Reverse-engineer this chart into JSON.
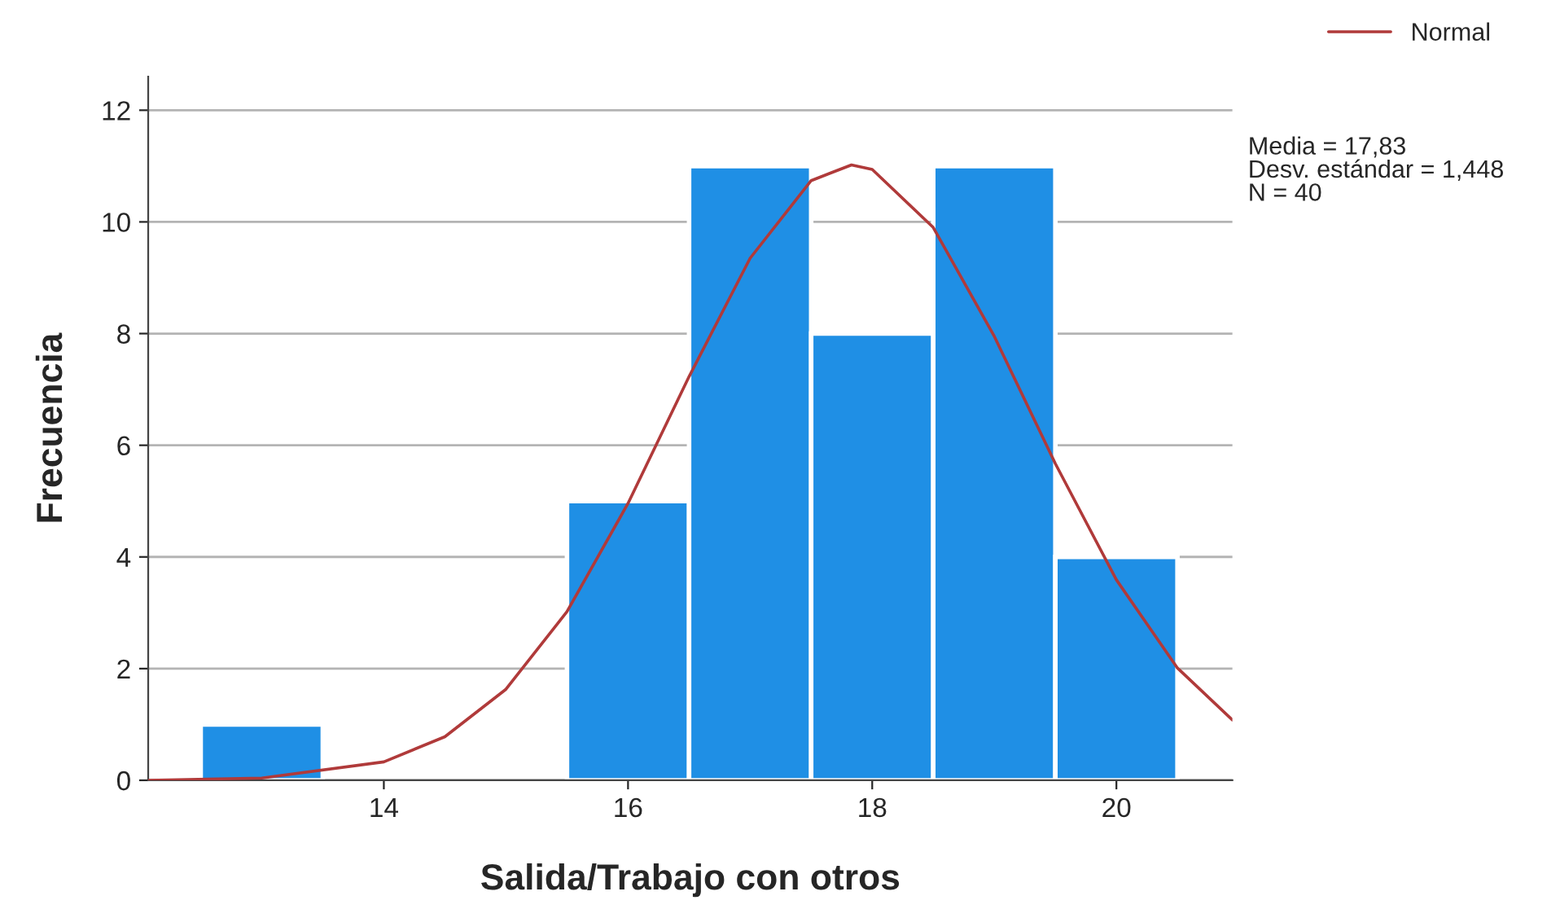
{
  "chart_data": {
    "type": "histogram",
    "xlabel": "Salida/Trabajo con otros",
    "ylabel": "Frecuencia",
    "bins": [
      12.5,
      13.5,
      14.5,
      15.5,
      16.5,
      17.5,
      18.5,
      19.5,
      20.5
    ],
    "values": [
      1,
      0,
      0,
      5,
      11,
      8,
      11,
      4
    ],
    "color": "#1f8fe5",
    "series": [
      {
        "name": "Normal",
        "type": "line",
        "color": "#b03a3a",
        "x": [
          12.07,
          13,
          14,
          14.5,
          15,
          15.5,
          16,
          16.5,
          17,
          17.5,
          17.83,
          18,
          18.5,
          19,
          19.5,
          20,
          20.5,
          20.95
        ],
        "values": [
          0.0,
          0.04,
          0.33,
          0.78,
          1.63,
          3.02,
          4.96,
          7.23,
          9.35,
          10.74,
          11.02,
          10.94,
          9.9,
          7.95,
          5.67,
          3.59,
          2.01,
          1.08
        ]
      }
    ],
    "annotations": [
      "Media = 17,83\nDesv. estándar = 1,448\nN = 40"
    ],
    "xlim": [
      12.07,
      20.95
    ],
    "xticks": [
      14,
      16,
      18,
      20
    ],
    "ylim": [
      0,
      12.6
    ],
    "yticks": [
      0,
      2,
      4,
      6,
      8,
      10,
      12
    ],
    "grid": "y",
    "legend": "top right"
  }
}
